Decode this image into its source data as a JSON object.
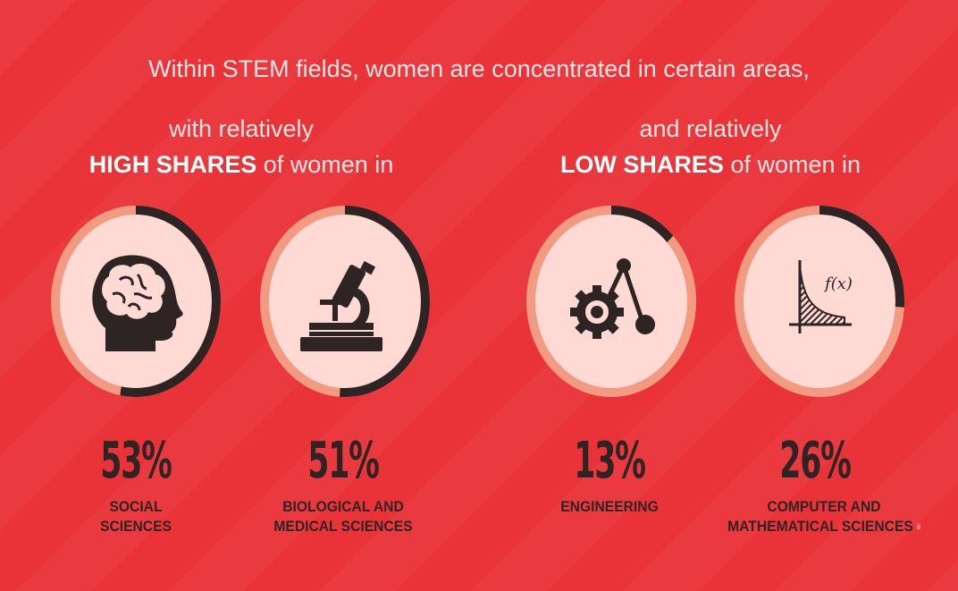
{
  "headline": "Within STEM fields, women are concentrated in certain areas,",
  "left_group": {
    "line1": "with relatively",
    "strong": "HIGH SHARES",
    "rest": "of women in"
  },
  "right_group": {
    "line1": "and relatively",
    "strong": "LOW SHARES",
    "rest": "of women in"
  },
  "colors": {
    "background": "#ea3338",
    "ring_fill": "#ffd9d3",
    "ring_track": "#f39a82",
    "ring_value": "#2f2424",
    "text_dark": "#2f2424"
  },
  "fields": [
    {
      "percent": "53%",
      "share": 0.53,
      "label_line1": "SOCIAL",
      "label_line2": "SCIENCES",
      "icon": "head-brain-icon"
    },
    {
      "percent": "51%",
      "share": 0.51,
      "label_line1": "BIOLOGICAL AND",
      "label_line2": "MEDICAL SCIENCES",
      "icon": "microscope-icon"
    },
    {
      "percent": "13%",
      "share": 0.13,
      "label_line1": "ENGINEERING",
      "label_line2": "",
      "icon": "gear-wrench-icon"
    },
    {
      "percent": "26%",
      "share": 0.26,
      "label_line1": "COMPUTER AND",
      "label_line2": "MATHEMATICAL SCIENCES",
      "icon": "function-graph-icon",
      "footnote": "ii"
    }
  ],
  "function_label": "f(x)"
}
